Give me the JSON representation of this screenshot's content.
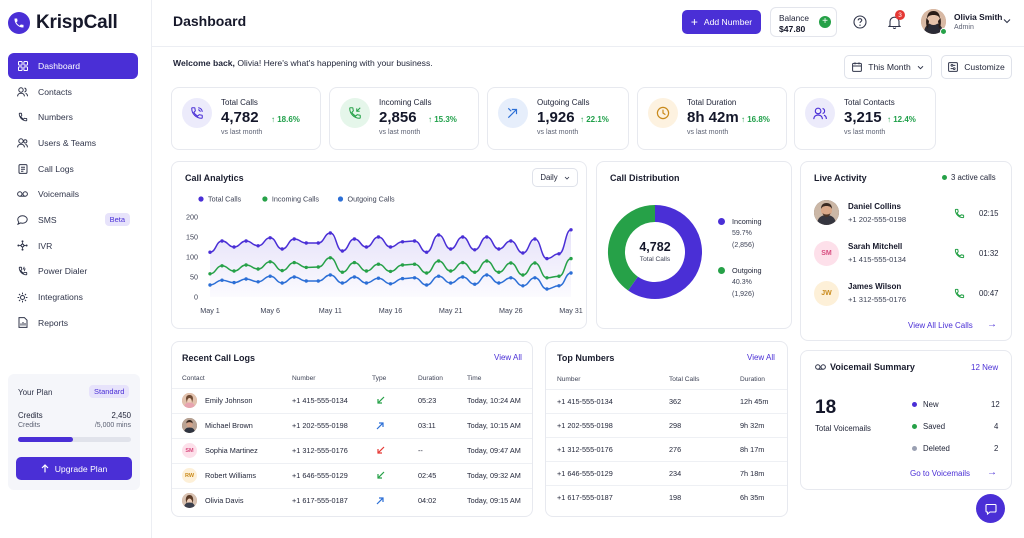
{
  "brand": {
    "name": "KrispCall",
    "accent": "#4a2fd6"
  },
  "sidebar": {
    "items": [
      {
        "label": "Dashboard",
        "icon": "grid-icon",
        "active": true
      },
      {
        "label": "Contacts",
        "icon": "contacts-icon"
      },
      {
        "label": "Numbers",
        "icon": "phone-icon"
      },
      {
        "label": "Users & Teams",
        "icon": "users-icon"
      },
      {
        "label": "Call Logs",
        "icon": "call-logs-icon"
      },
      {
        "label": "Voicemails",
        "icon": "voicemail-icon"
      },
      {
        "label": "SMS",
        "icon": "sms-icon",
        "badge": "Beta"
      },
      {
        "label": "IVR",
        "icon": "ivr-icon"
      },
      {
        "label": "Power Dialer",
        "icon": "power-dialer-icon"
      },
      {
        "label": "Integrations",
        "icon": "integrations-icon"
      },
      {
        "label": "Reports",
        "icon": "reports-icon"
      }
    ],
    "plan": {
      "title": "Your Plan",
      "badge": "Standard",
      "credits_label": "Credits",
      "credits_value": "2,450",
      "credits_sub": "Credits",
      "credits_total": "/5,000 mins",
      "progress": 0.49,
      "upgrade_label": "Upgrade Plan"
    }
  },
  "header": {
    "title": "Dashboard",
    "add_number_label": "Add Number",
    "balance_label": "Balance",
    "balance_value": "$47.80",
    "notification_count": "3",
    "user_name": "Olivia Smith",
    "user_role": "Admin"
  },
  "welcome": {
    "bold": "Welcome back,",
    "rest": " Olivia! Here's what's happening with your business.",
    "period_label": "This Month",
    "customize_label": "Customize"
  },
  "stats": [
    {
      "title": "Total Calls",
      "value": "4,782",
      "delta": "18.6%",
      "vs": "vs last month",
      "icon": "phone-ring-icon",
      "tint": "#ecebfb",
      "ink": "#4a2fd6"
    },
    {
      "title": "Incoming Calls",
      "value": "2,856",
      "delta": "15.3%",
      "vs": "vs last month",
      "icon": "incoming-call-icon",
      "tint": "#e5f6ea",
      "ink": "#26a148"
    },
    {
      "title": "Outgoing Calls",
      "value": "1,926",
      "delta": "22.1%",
      "vs": "vs last month",
      "icon": "outgoing-call-icon",
      "tint": "#e6eefb",
      "ink": "#2c6fd6"
    },
    {
      "title": "Total Duration",
      "value": "8h 42m",
      "delta": "16.8%",
      "vs": "vs last month",
      "icon": "clock-icon",
      "tint": "#fdf2e0",
      "ink": "#c98a1c"
    },
    {
      "title": "Total Contacts",
      "value": "3,215",
      "delta": "12.4%",
      "vs": "vs last month",
      "icon": "contacts-icon",
      "tint": "#ecebfb",
      "ink": "#4a2fd6"
    }
  ],
  "analytics": {
    "title": "Call Analytics",
    "granularity": "Daily"
  },
  "chart_data": {
    "type": "line",
    "ylim": [
      0,
      200
    ],
    "yticks": [
      "200",
      "150",
      "100",
      "50",
      "0"
    ],
    "xticks": [
      "May 1",
      "May 6",
      "May 11",
      "May 16",
      "May 21",
      "May 26",
      "May 31"
    ],
    "series": [
      {
        "name": "Total Calls",
        "color": "#4a2fd6",
        "values": [
          112,
          140,
          125,
          140,
          128,
          148,
          120,
          145,
          135,
          135,
          160,
          115,
          145,
          125,
          150,
          125,
          138,
          140,
          112,
          155,
          120,
          150,
          118,
          150,
          120,
          140,
          110,
          145,
          96,
          108,
          168
        ]
      },
      {
        "name": "Incoming Calls",
        "color": "#26a148",
        "values": [
          58,
          78,
          65,
          80,
          70,
          88,
          66,
          86,
          74,
          75,
          98,
          62,
          86,
          65,
          82,
          64,
          80,
          82,
          60,
          90,
          65,
          86,
          62,
          90,
          62,
          85,
          55,
          85,
          48,
          52,
          96
        ]
      },
      {
        "name": "Outgoing Calls",
        "color": "#2c6fd6",
        "values": [
          30,
          42,
          36,
          45,
          38,
          52,
          35,
          50,
          40,
          40,
          55,
          35,
          50,
          35,
          47,
          33,
          46,
          48,
          30,
          52,
          35,
          50,
          32,
          55,
          35,
          48,
          28,
          48,
          20,
          28,
          60
        ]
      }
    ]
  },
  "distribution": {
    "title": "Call Distribution",
    "total": "4,782",
    "total_label": "Total Calls",
    "slices": [
      {
        "name": "Incoming",
        "pct": "59.7%",
        "count": "(2,856)",
        "color": "#4a2fd6",
        "value": 59.7
      },
      {
        "name": "Outgoing",
        "pct": "40.3%",
        "count": "(1,926)",
        "color": "#26a148",
        "value": 40.3
      }
    ]
  },
  "live": {
    "title": "Live Activity",
    "active": "3 active calls",
    "calls": [
      {
        "name": "Daniel Collins",
        "number": "+1 202-555-0198",
        "time": "02:15",
        "avatar": "photo"
      },
      {
        "name": "Sarah Mitchell",
        "number": "+1 415-555-0134",
        "time": "01:32",
        "avatar": "SM"
      },
      {
        "name": "James Wilson",
        "number": "+1 312-555-0176",
        "time": "00:47",
        "avatar": "JW"
      }
    ],
    "view_all": "View All Live Calls"
  },
  "recent": {
    "title": "Recent Call Logs",
    "view_all": "View All",
    "headers": [
      "Contact",
      "Number",
      "Type",
      "Duration",
      "Time"
    ],
    "rows": [
      {
        "contact": "Emily Johnson",
        "number": "+1 415-555-0134",
        "type": "incoming",
        "duration": "05:23",
        "time": "Today, 10:24 AM",
        "avatar": "photo"
      },
      {
        "contact": "Michael Brown",
        "number": "+1 202-555-0198",
        "type": "outgoing",
        "duration": "03:11",
        "time": "Today, 10:15 AM",
        "avatar": "photo"
      },
      {
        "contact": "Sophia Martinez",
        "number": "+1 312-555-0176",
        "type": "missed",
        "duration": "--",
        "time": "Today, 09:47 AM",
        "avatar": "SM"
      },
      {
        "contact": "Robert Williams",
        "number": "+1 646-555-0129",
        "type": "incoming",
        "duration": "02:45",
        "time": "Today, 09:32 AM",
        "avatar": "RW"
      },
      {
        "contact": "Olivia Davis",
        "number": "+1 617-555-0187",
        "type": "outgoing",
        "duration": "04:02",
        "time": "Today, 09:15 AM",
        "avatar": "photo"
      }
    ]
  },
  "top_numbers": {
    "title": "Top Numbers",
    "view_all": "View All",
    "headers": [
      "Number",
      "Total Calls",
      "Duration"
    ],
    "rows": [
      {
        "number": "+1 415-555-0134",
        "calls": "362",
        "duration": "12h 45m"
      },
      {
        "number": "+1 202-555-0198",
        "calls": "298",
        "duration": "9h 32m"
      },
      {
        "number": "+1 312-555-0176",
        "calls": "276",
        "duration": "8h 17m"
      },
      {
        "number": "+1 646-555-0129",
        "calls": "234",
        "duration": "7h 18m"
      },
      {
        "number": "+1 617-555-0187",
        "calls": "198",
        "duration": "6h 35m"
      }
    ]
  },
  "voicemail": {
    "title": "Voicemail Summary",
    "new_badge": "12 New",
    "total": "18",
    "total_label": "Total Voicemails",
    "items": [
      {
        "label": "New",
        "count": "12",
        "color": "#4a2fd6"
      },
      {
        "label": "Saved",
        "count": "4",
        "color": "#26a148"
      },
      {
        "label": "Deleted",
        "count": "2",
        "color": "#9aa0b2"
      }
    ],
    "link": "Go to Voicemails"
  }
}
